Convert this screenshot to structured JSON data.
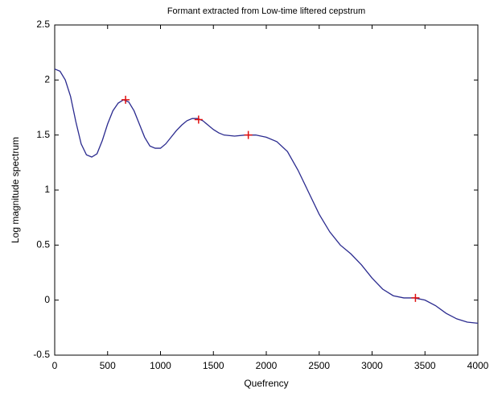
{
  "chart_data": {
    "type": "line",
    "title": "Formant extracted from Low-time liftered cepstrum",
    "x_label": "Quefrency",
    "y_label": "Log magnitude spectrum",
    "xlim": [
      0,
      4000
    ],
    "xticks": [
      0,
      500,
      1000,
      1500,
      2000,
      2500,
      3000,
      3500,
      4000
    ],
    "ylim": [
      -0.5,
      2.5
    ],
    "yticks": [
      -0.5,
      0,
      0.5,
      1,
      1.5,
      2,
      2.5
    ],
    "grid": false,
    "series": [
      {
        "style": "line",
        "color": "#2b2b8f",
        "x": [
          0,
          50,
          100,
          150,
          200,
          250,
          300,
          350,
          400,
          450,
          500,
          550,
          600,
          650,
          700,
          750,
          800,
          850,
          900,
          950,
          1000,
          1050,
          1100,
          1150,
          1200,
          1250,
          1300,
          1350,
          1400,
          1450,
          1500,
          1550,
          1600,
          1700,
          1800,
          1900,
          2000,
          2100,
          2200,
          2300,
          2400,
          2500,
          2600,
          2700,
          2800,
          2900,
          3000,
          3100,
          3200,
          3300,
          3400,
          3500,
          3600,
          3700,
          3800,
          3900,
          4000
        ],
        "values": [
          2.1,
          2.08,
          2.0,
          1.85,
          1.62,
          1.42,
          1.32,
          1.3,
          1.33,
          1.45,
          1.6,
          1.72,
          1.79,
          1.82,
          1.8,
          1.72,
          1.6,
          1.48,
          1.4,
          1.38,
          1.38,
          1.42,
          1.48,
          1.54,
          1.59,
          1.63,
          1.65,
          1.65,
          1.63,
          1.59,
          1.55,
          1.52,
          1.5,
          1.49,
          1.5,
          1.5,
          1.48,
          1.44,
          1.35,
          1.18,
          0.98,
          0.78,
          0.62,
          0.5,
          0.42,
          0.32,
          0.2,
          0.1,
          0.04,
          0.02,
          0.02,
          0.0,
          -0.05,
          -0.12,
          -0.17,
          -0.2,
          -0.21
        ]
      },
      {
        "style": "marker",
        "marker": "+",
        "color": "#e01010",
        "x": [
          670,
          1360,
          1830,
          3410
        ],
        "values": [
          1.82,
          1.64,
          1.5,
          0.02
        ]
      }
    ]
  }
}
